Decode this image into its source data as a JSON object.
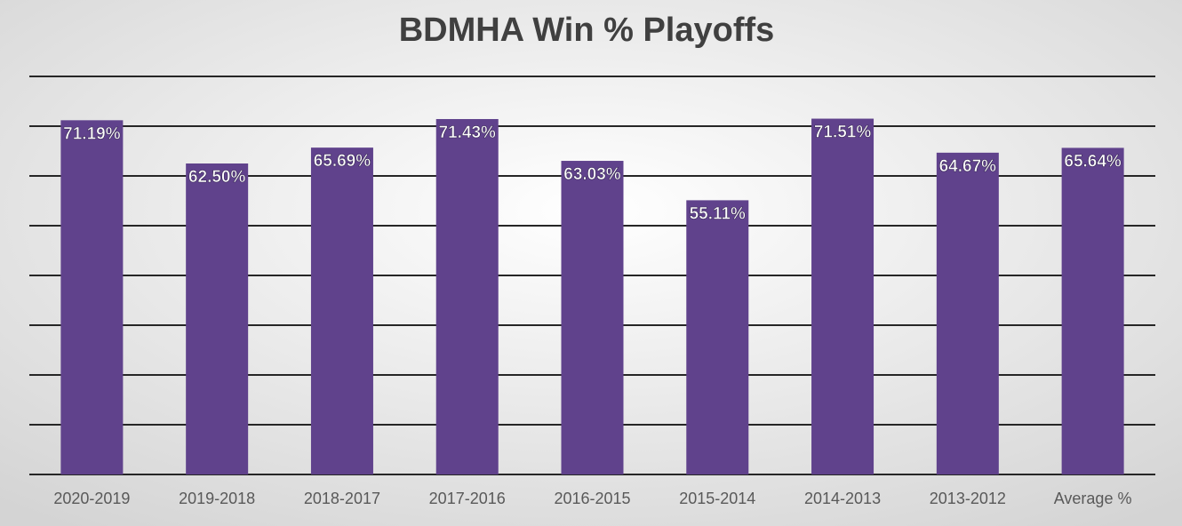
{
  "chart_data": {
    "type": "bar",
    "title": "BDMHA Win % Playoffs",
    "categories": [
      "2020-2019",
      "2019-2018",
      "2018-2017",
      "2017-2016",
      "2016-2015",
      "2015-2014",
      "2014-2013",
      "2013-2012",
      "Average %"
    ],
    "values": [
      71.19,
      62.5,
      65.69,
      71.43,
      63.03,
      55.11,
      71.51,
      64.67,
      65.64
    ],
    "value_labels": [
      "71.19%",
      "62.50%",
      "65.69%",
      "71.43%",
      "63.03%",
      "55.11%",
      "71.51%",
      "64.67%",
      "65.64%"
    ],
    "color": "#60428c",
    "ylim": [
      0,
      80
    ],
    "yticks": [
      0,
      10,
      20,
      30,
      40,
      50,
      60,
      70,
      80
    ],
    "grid": true
  }
}
